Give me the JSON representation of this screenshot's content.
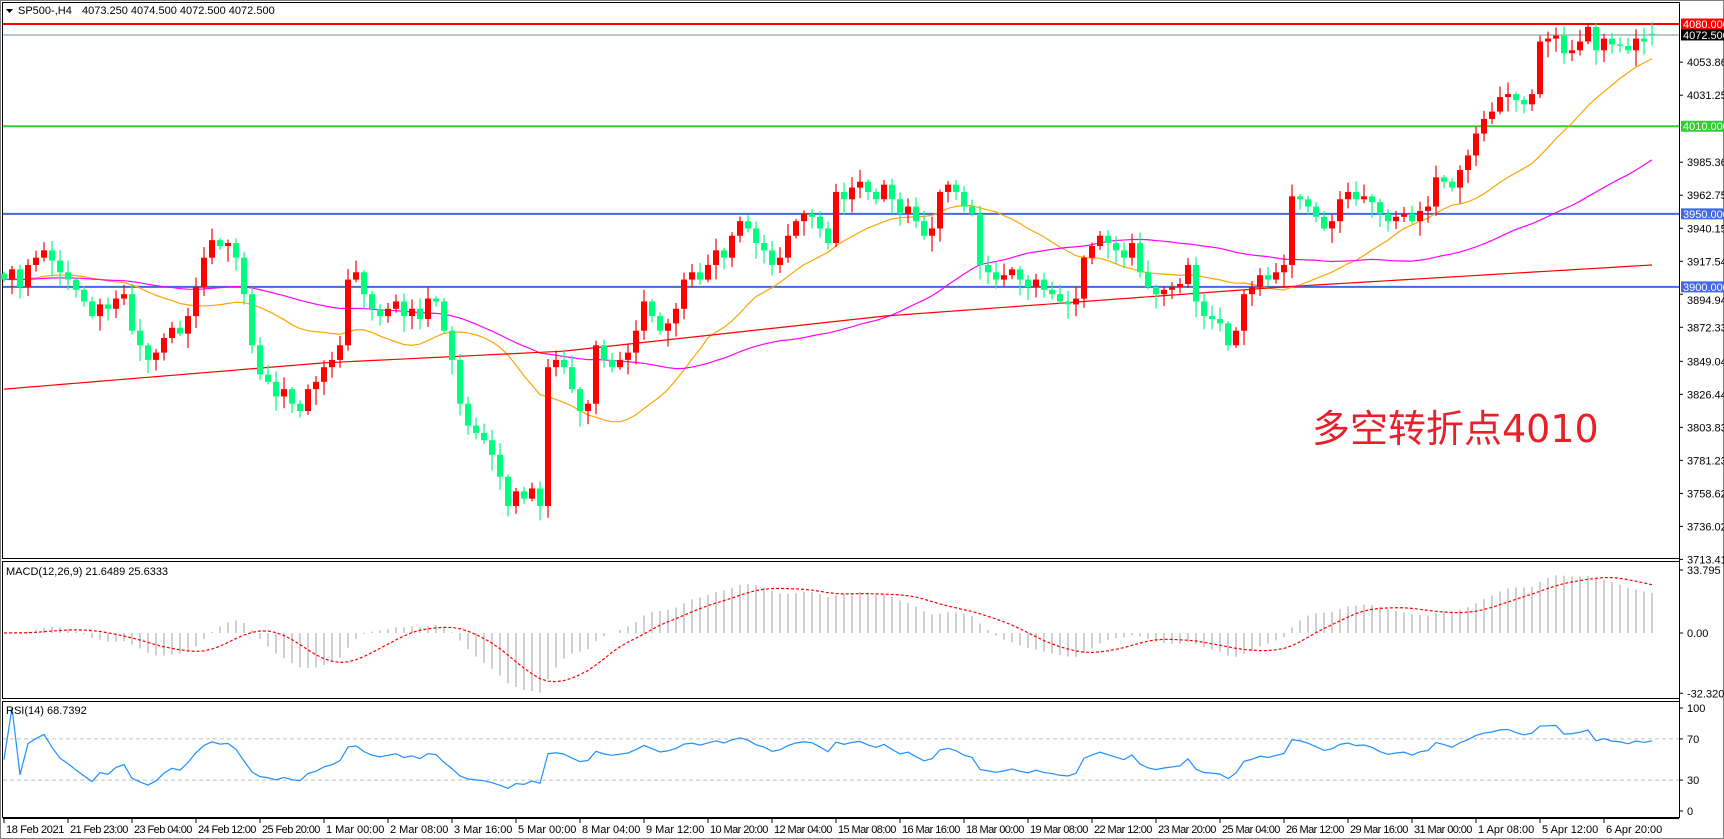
{
  "header": {
    "symbol": "SP500-,H4",
    "ohlc": "4073.250 4074.500 4072.500 4072.500"
  },
  "annotation": "多空转折点4010",
  "colors": {
    "up_candle": "#ff0000",
    "down_candle": "#00ff7f",
    "ma_fast": "#ffa500",
    "ma_mid": "#ff00ff",
    "ma_slow": "#ff0000",
    "macd_hist": "#c0c0c0",
    "macd_signal": "#ff0000",
    "rsi": "#1e90ff"
  },
  "chart_data": [
    {
      "type": "candlestick",
      "title": "SP500-,H4",
      "ylim": [
        3713.415,
        4087
      ],
      "price_ticks": [
        "4053.860",
        "4031.255",
        "3985.360",
        "3962.755",
        "3940.150",
        "3917.545",
        "3894.940",
        "3872.335",
        "3849.045",
        "3826.440",
        "3803.835",
        "3781.230",
        "3758.625",
        "3736.020",
        "3713.415"
      ],
      "price_tick_values": [
        4053.86,
        4031.255,
        3985.36,
        3962.755,
        3940.15,
        3917.545,
        3894.94,
        3872.335,
        3849.045,
        3826.44,
        3803.835,
        3781.23,
        3758.625,
        3736.02,
        3713.415
      ],
      "horizontal_lines": [
        {
          "value": 4080,
          "label": "4080.000",
          "color": "#ff0000"
        },
        {
          "value": 4072.5,
          "label": "4072.500",
          "color": "#000000",
          "line_color": "#778899"
        },
        {
          "value": 4010,
          "label": "4010.000",
          "color": "#32cd32"
        },
        {
          "value": 3950,
          "label": "3950.000",
          "color": "#4169e1"
        },
        {
          "value": 3900,
          "label": "3900.000",
          "color": "#4169e1"
        }
      ],
      "time_labels": [
        "18 Feb 2021",
        "21 Feb 23:00",
        "23 Feb 04:00",
        "24 Feb 12:00",
        "25 Feb 20:00",
        "1 Mar 00:00",
        "2 Mar 08:00",
        "3 Mar 16:00",
        "5 Mar 00:00",
        "8 Mar 04:00",
        "9 Mar 12:00",
        "10 Mar 20:00",
        "12 Mar 04:00",
        "15 Mar 08:00",
        "16 Mar 16:00",
        "18 Mar 00:00",
        "19 Mar 08:00",
        "22 Mar 12:00",
        "23 Mar 20:00",
        "25 Mar 04:00",
        "26 Mar 12:00",
        "29 Mar 16:00",
        "31 Mar 00:00",
        "1 Apr 08:00",
        "5 Apr 12:00",
        "6 Apr 20:00"
      ],
      "closes": [
        3905,
        3912,
        3900,
        3915,
        3920,
        3925,
        3918,
        3910,
        3905,
        3898,
        3890,
        3880,
        3888,
        3885,
        3892,
        3895,
        3870,
        3860,
        3850,
        3855,
        3865,
        3872,
        3868,
        3880,
        3900,
        3920,
        3932,
        3928,
        3930,
        3920,
        3895,
        3860,
        3840,
        3835,
        3825,
        3830,
        3820,
        3815,
        3830,
        3835,
        3845,
        3850,
        3860,
        3905,
        3910,
        3895,
        3885,
        3880,
        3885,
        3890,
        3880,
        3885,
        3878,
        3892,
        3890,
        3870,
        3850,
        3820,
        3805,
        3800,
        3795,
        3785,
        3770,
        3750,
        3760,
        3755,
        3762,
        3750,
        3845,
        3850,
        3845,
        3830,
        3815,
        3820,
        3860,
        3850,
        3845,
        3850,
        3855,
        3870,
        3890,
        3880,
        3870,
        3875,
        3885,
        3905,
        3910,
        3905,
        3915,
        3925,
        3920,
        3935,
        3945,
        3940,
        3930,
        3925,
        3915,
        3920,
        3935,
        3945,
        3950,
        3948,
        3940,
        3930,
        3965,
        3960,
        3968,
        3972,
        3965,
        3960,
        3970,
        3960,
        3950,
        3955,
        3945,
        3935,
        3940,
        3965,
        3970,
        3965,
        3955,
        3950,
        3915,
        3910,
        3905,
        3908,
        3912,
        3905,
        3900,
        3905,
        3898,
        3895,
        3890,
        3888,
        3892,
        3920,
        3928,
        3935,
        3930,
        3925,
        3920,
        3930,
        3910,
        3900,
        3895,
        3898,
        3900,
        3902,
        3915,
        3890,
        3880,
        3878,
        3875,
        3860,
        3870,
        3895,
        3900,
        3908,
        3905,
        3910,
        3915,
        3962,
        3960,
        3955,
        3948,
        3940,
        3945,
        3960,
        3965,
        3960,
        3962,
        3958,
        3950,
        3945,
        3948,
        3950,
        3945,
        3952,
        3955,
        3975,
        3972,
        3968,
        3980,
        3990,
        4005,
        4015,
        4020,
        4030,
        4032,
        4028,
        4025,
        4032,
        4068,
        4070,
        4072,
        4060,
        4062,
        4068,
        4078,
        4062,
        4070,
        4066,
        4065,
        4062,
        4070,
        4068,
        4072.5
      ],
      "slow_ma_approx": [
        [
          0,
          3830
        ],
        [
          40,
          3848
        ],
        [
          70,
          3856
        ],
        [
          110,
          3880
        ],
        [
          160,
          3900
        ],
        [
          206,
          3915
        ]
      ]
    },
    {
      "type": "bar+line",
      "title": "MACD(12,26,9) 21.6489 25.6333",
      "ylim": [
        -32.3207,
        33.795
      ],
      "ticks": [
        "33.795",
        "0.00",
        "-32.3207"
      ],
      "tick_values": [
        33.795,
        0,
        -32.3207
      ]
    },
    {
      "type": "line",
      "title": "RSI(14) 68.7392",
      "ylim": [
        0,
        100
      ],
      "ticks": [
        "100",
        "70",
        "30",
        "0"
      ],
      "tick_values": [
        100,
        70,
        30,
        0
      ],
      "levels": [
        70,
        30
      ]
    }
  ]
}
